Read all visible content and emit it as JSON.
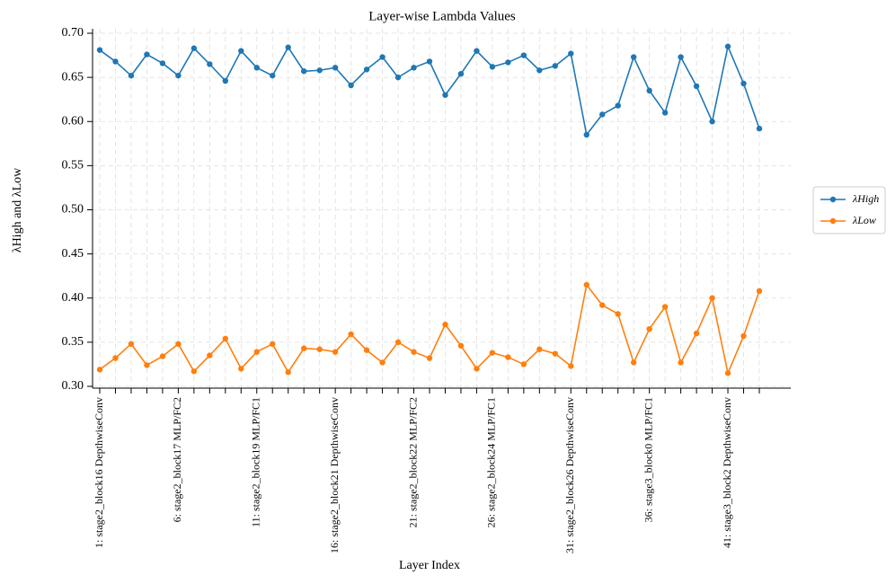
{
  "chart_data": {
    "type": "line",
    "title": "Layer-wise Lambda Values",
    "xlabel": "Layer Index",
    "ylabel": "λHigh and λLow",
    "categories": [
      "1: stage2_block16 DepthwiseConv",
      null,
      null,
      null,
      null,
      "6: stage2_block17 MLP/FC2",
      null,
      null,
      null,
      null,
      "11: stage2_block19 MLP/FC1",
      null,
      null,
      null,
      null,
      "16: stage2_block21 DepthwiseConv",
      null,
      null,
      null,
      null,
      "21: stage2_block22 MLP/FC2",
      null,
      null,
      null,
      null,
      "26: stage2_block24 MLP/FC1",
      null,
      null,
      null,
      null,
      "31: stage2_block26 DepthwiseConv",
      null,
      null,
      null,
      null,
      "36: stage3_block0 MLP/FC1",
      null,
      null,
      null,
      null,
      "41: stage3_block2 DepthwiseConv",
      null,
      null
    ],
    "series": [
      {
        "name": "λHigh",
        "color": "#1f77b4",
        "values": [
          0.681,
          0.668,
          0.652,
          0.676,
          0.666,
          0.652,
          0.683,
          0.665,
          0.646,
          0.68,
          0.661,
          0.652,
          0.684,
          0.657,
          0.658,
          0.661,
          0.641,
          0.659,
          0.673,
          0.65,
          0.661,
          0.668,
          0.63,
          0.654,
          0.68,
          0.662,
          0.667,
          0.675,
          0.658,
          0.663,
          0.677,
          0.585,
          0.608,
          0.618,
          0.673,
          0.635,
          0.61,
          0.673,
          0.64,
          0.6,
          0.685,
          0.643,
          0.592
        ]
      },
      {
        "name": "λLow",
        "color": "#ff7f0e",
        "values": [
          0.319,
          0.332,
          0.348,
          0.324,
          0.334,
          0.348,
          0.317,
          0.335,
          0.354,
          0.32,
          0.339,
          0.348,
          0.316,
          0.343,
          0.342,
          0.339,
          0.359,
          0.341,
          0.327,
          0.35,
          0.339,
          0.332,
          0.37,
          0.346,
          0.32,
          0.338,
          0.333,
          0.325,
          0.342,
          0.337,
          0.323,
          0.415,
          0.392,
          0.382,
          0.327,
          0.365,
          0.39,
          0.327,
          0.36,
          0.4,
          0.315,
          0.357,
          0.408
        ]
      }
    ],
    "ylim": [
      0.3,
      0.7
    ],
    "yticks": [
      {
        "value": 0.3,
        "label": "0.30"
      },
      {
        "value": 0.35,
        "label": "0.35"
      },
      {
        "value": 0.4,
        "label": "0.40"
      },
      {
        "value": 0.45,
        "label": "0.45"
      },
      {
        "value": 0.5,
        "label": "0.50"
      },
      {
        "value": 0.55,
        "label": "0.55"
      },
      {
        "value": 0.6,
        "label": "0.60"
      },
      {
        "value": 0.65,
        "label": "0.65"
      },
      {
        "value": 0.7,
        "label": "0.70"
      }
    ],
    "grid": true,
    "legend": "right"
  }
}
